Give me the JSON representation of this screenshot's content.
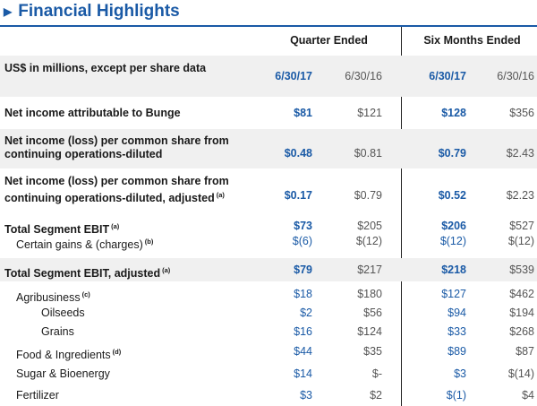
{
  "title": "Financial Highlights",
  "headers": {
    "quarter": "Quarter Ended",
    "six_months": "Six Months Ended"
  },
  "columns": {
    "label": "US$ in millions, except per share data",
    "q_2017": "6/30/17",
    "q_2016": "6/30/16",
    "s_2017": "6/30/17",
    "s_2016": "6/30/16"
  },
  "rows": [
    {
      "label": "Net income attributable to Bunge",
      "note": "",
      "v": [
        "$81",
        "$121",
        "$128",
        "$356"
      ]
    },
    {
      "label": "Net income (loss) per common share from continuing operations-diluted",
      "note": "",
      "v": [
        "$0.48",
        "$0.81",
        "$0.79",
        "$2.43"
      ]
    },
    {
      "label": "Net income (loss) per common share from continuing operations-diluted, adjusted",
      "note": "(a)",
      "v": [
        "$0.17",
        "$0.79",
        "$0.52",
        "$2.23"
      ]
    },
    {
      "label": "Total Segment EBIT",
      "note": "(a)",
      "v": [
        "$73",
        "$205",
        "$206",
        "$527"
      ]
    },
    {
      "label": "Certain gains & (charges)",
      "note": "(b)",
      "v": [
        "$(6)",
        "$(12)",
        "$(12)",
        "$(12)"
      ]
    },
    {
      "label": "Total Segment EBIT, adjusted",
      "note": "(a)",
      "v": [
        "$79",
        "$217",
        "$218",
        "$539"
      ]
    },
    {
      "label": "Agribusiness",
      "note": "(c)",
      "v": [
        "$18",
        "$180",
        "$127",
        "$462"
      ]
    },
    {
      "label": "Oilseeds",
      "note": "",
      "v": [
        "$2",
        "$56",
        "$94",
        "$194"
      ]
    },
    {
      "label": "Grains",
      "note": "",
      "v": [
        "$16",
        "$124",
        "$33",
        "$268"
      ]
    },
    {
      "label": "Food & Ingredients",
      "note": "(d)",
      "v": [
        "$44",
        "$35",
        "$89",
        "$87"
      ]
    },
    {
      "label": "Sugar & Bioenergy",
      "note": "",
      "v": [
        "$14",
        "$-",
        "$3",
        "$(14)"
      ]
    },
    {
      "label": "Fertilizer",
      "note": "",
      "v": [
        "$3",
        "$2",
        "$(1)",
        "$4"
      ]
    }
  ]
}
